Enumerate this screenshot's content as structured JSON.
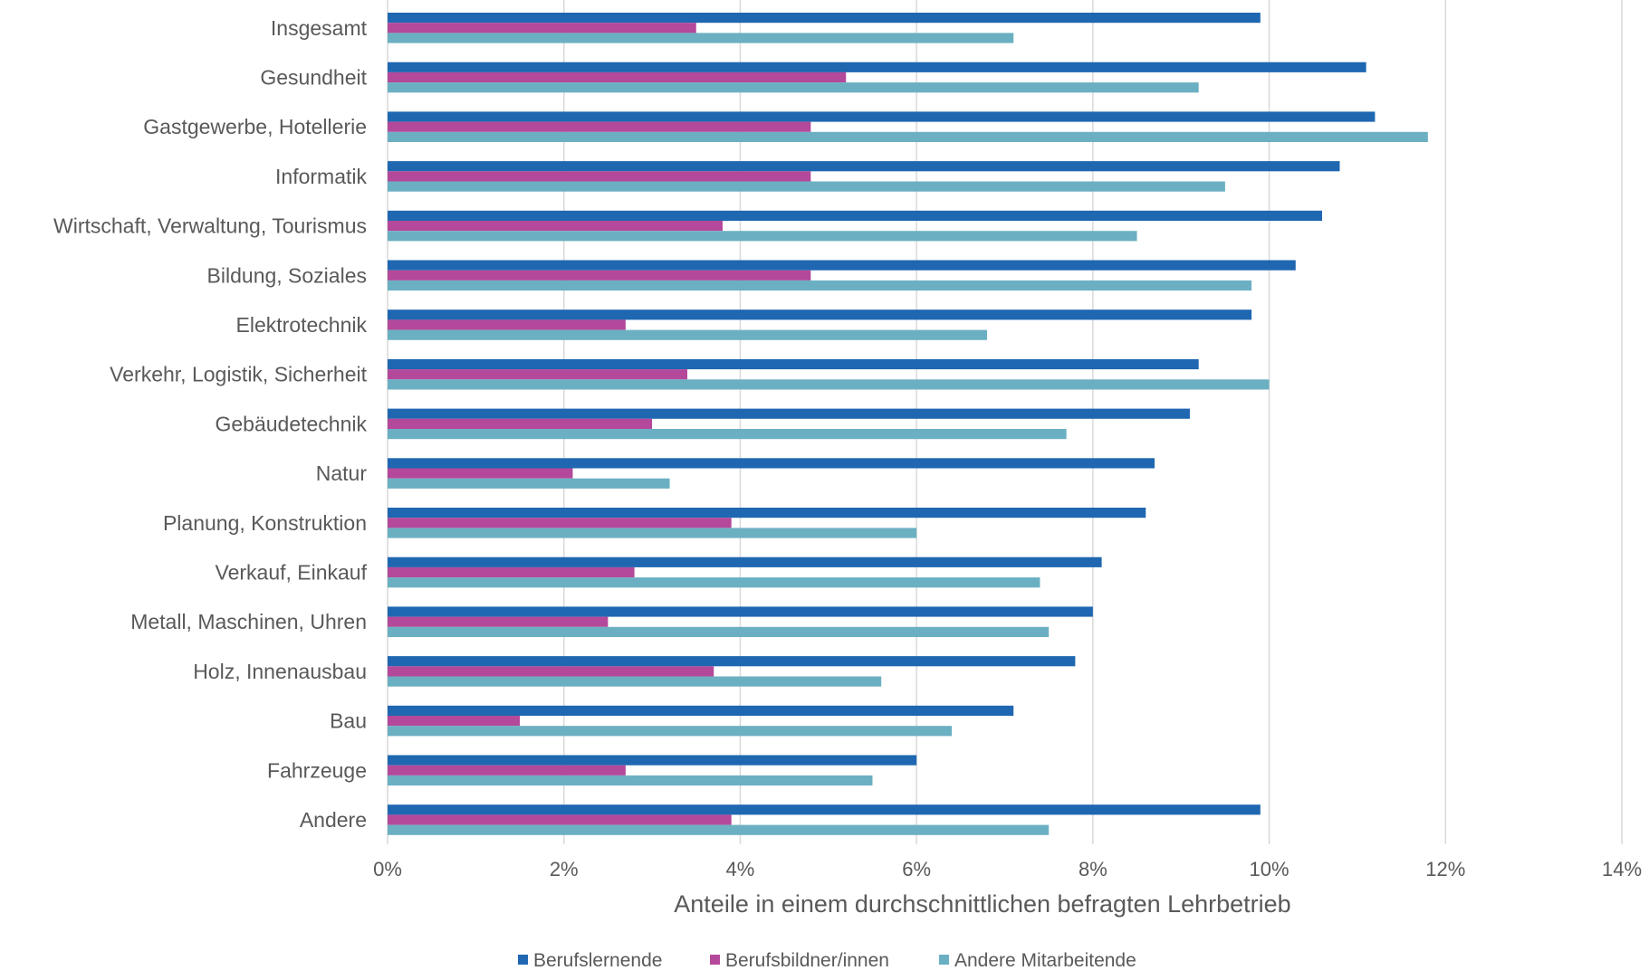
{
  "chart_data": {
    "type": "bar",
    "orientation": "horizontal",
    "title": "",
    "xlabel": "Anteile in einem durchschnittlichen befragten Lehrbetrieb",
    "ylabel": "",
    "xlim": [
      0,
      14
    ],
    "x_ticks": [
      0,
      2,
      4,
      6,
      8,
      10,
      12,
      14
    ],
    "x_tick_labels": [
      "0%",
      "2%",
      "4%",
      "6%",
      "8%",
      "10%",
      "12%",
      "14%"
    ],
    "grid": "vertical",
    "legend_position": "bottom",
    "categories": [
      "Insgesamt",
      "Gesundheit",
      "Gastgewerbe, Hotellerie",
      "Informatik",
      "Wirtschaft, Verwaltung, Tourismus",
      "Bildung, Soziales",
      "Elektrotechnik",
      "Verkehr, Logistik, Sicherheit",
      "Gebäudetechnik",
      "Natur",
      "Planung, Konstruktion",
      "Verkauf, Einkauf",
      "Metall, Maschinen, Uhren",
      "Holz, Innenausbau",
      "Bau",
      "Fahrzeuge",
      "Andere"
    ],
    "series": [
      {
        "name": "Berufslernende",
        "color": "#1f67b1",
        "values": [
          9.9,
          11.1,
          11.2,
          10.8,
          10.6,
          10.3,
          9.8,
          9.2,
          9.1,
          8.7,
          8.6,
          8.1,
          8.0,
          7.8,
          7.1,
          6.0,
          9.9
        ]
      },
      {
        "name": "Berufsbildner/innen",
        "color": "#b4489a",
        "values": [
          3.5,
          5.2,
          4.8,
          4.8,
          3.8,
          4.8,
          2.7,
          3.4,
          3.0,
          2.1,
          3.9,
          2.8,
          2.5,
          3.7,
          1.5,
          2.7,
          3.9
        ]
      },
      {
        "name": "Andere Mitarbeitende",
        "color": "#6bb0c2",
        "values": [
          7.1,
          9.2,
          11.8,
          9.5,
          8.5,
          9.8,
          6.8,
          10.0,
          7.7,
          3.2,
          6.0,
          7.4,
          7.5,
          5.6,
          6.4,
          5.5,
          7.5
        ]
      }
    ]
  }
}
